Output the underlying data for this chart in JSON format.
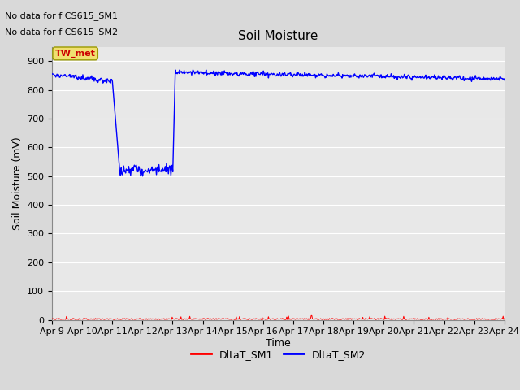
{
  "title": "Soil Moisture",
  "xlabel": "Time",
  "ylabel": "Soil Moisture (mV)",
  "ylim": [
    0,
    950
  ],
  "yticks": [
    0,
    100,
    200,
    300,
    400,
    500,
    600,
    700,
    800,
    900
  ],
  "x_tick_labels": [
    "Apr 9",
    "Apr 10",
    "Apr 11",
    "Apr 12",
    "Apr 13",
    "Apr 14",
    "Apr 15",
    "Apr 16",
    "Apr 17",
    "Apr 18",
    "Apr 19",
    "Apr 20",
    "Apr 21",
    "Apr 22",
    "Apr 23",
    "Apr 24"
  ],
  "annotation_text1": "No data for f CS615_SM1",
  "annotation_text2": "No data for f CS615_SM2",
  "box_label": "TW_met",
  "legend_labels": [
    "DltaT_SM1",
    "DltaT_SM2"
  ],
  "legend_colors": [
    "#ff0000",
    "#0000ff"
  ],
  "fig_bg_color": "#d9d9d9",
  "plot_bg_color": "#e8e8e8",
  "grid_color": "#ffffff",
  "line1_color": "#ff0000",
  "line2_color": "#0000ff",
  "title_fontsize": 11,
  "axis_label_fontsize": 9,
  "tick_fontsize": 8,
  "annot_fontsize": 8
}
